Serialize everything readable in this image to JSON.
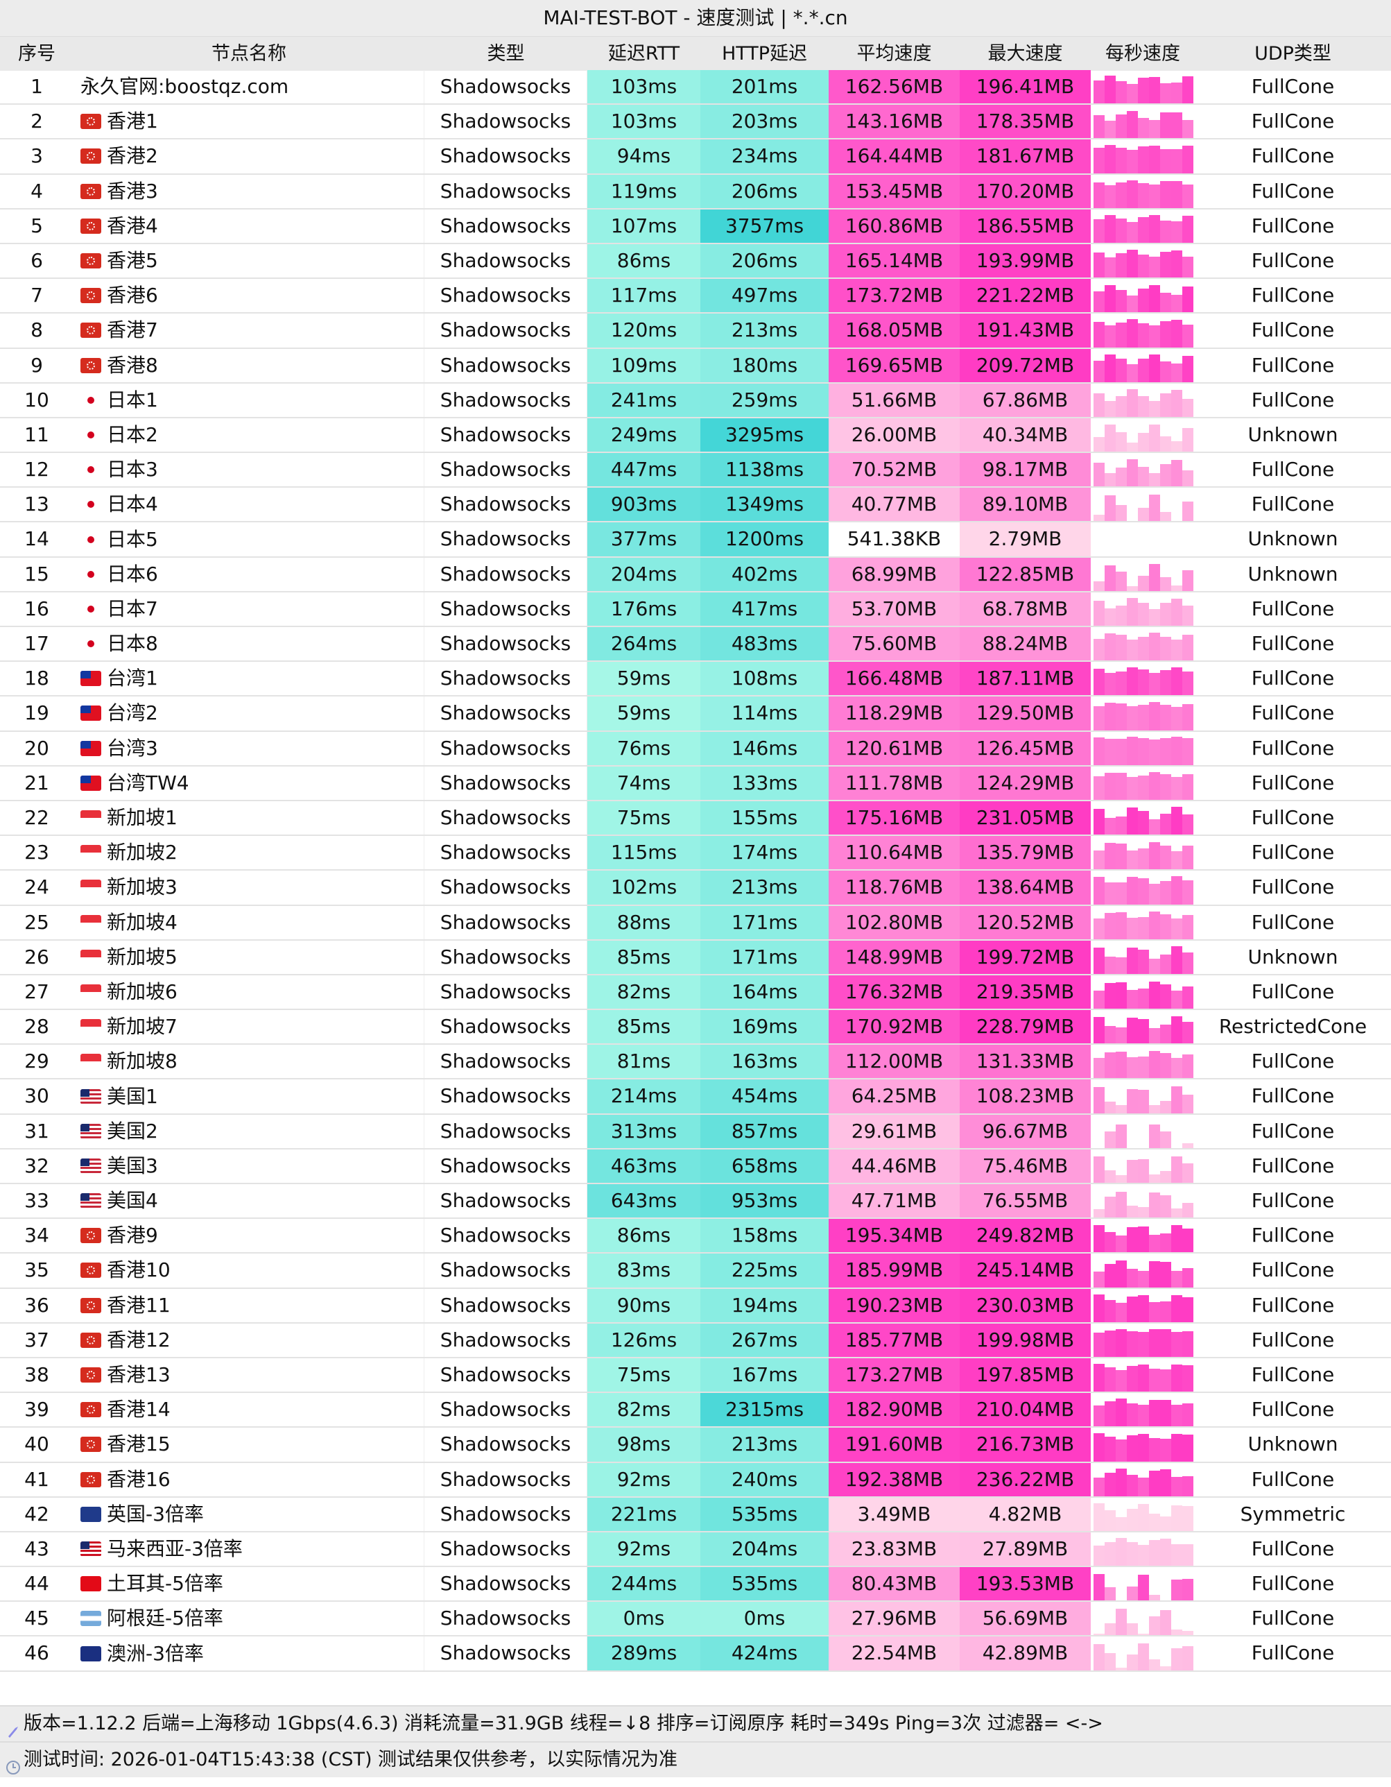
{
  "title": "MAI-TEST-BOT - 速度测试 | *.*.cn",
  "columns": [
    "序号",
    "节点名称",
    "类型",
    "延迟RTT",
    "HTTP延迟",
    "平均速度",
    "最大速度",
    "每秒速度",
    "UDP类型"
  ],
  "colors": {
    "latency_low": "#aaf8e8",
    "latency_high": "#3fd4d6",
    "speed_low": "#ffd8ea",
    "speed_high": "#ff3cc4"
  },
  "rows": [
    [
      "1",
      "",
      "永久官网:boostqz.com",
      "Shadowsocks",
      "103ms",
      "201ms",
      "162.56MB",
      "196.41MB",
      "FullCone"
    ],
    [
      "2",
      "hk-flag",
      "香港1",
      "Shadowsocks",
      "103ms",
      "203ms",
      "143.16MB",
      "178.35MB",
      "FullCone"
    ],
    [
      "3",
      "hk-flag",
      "香港2",
      "Shadowsocks",
      "94ms",
      "234ms",
      "164.44MB",
      "181.67MB",
      "FullCone"
    ],
    [
      "4",
      "hk-flag",
      "香港3",
      "Shadowsocks",
      "119ms",
      "206ms",
      "153.45MB",
      "170.20MB",
      "FullCone"
    ],
    [
      "5",
      "hk-flag",
      "香港4",
      "Shadowsocks",
      "107ms",
      "3757ms",
      "160.86MB",
      "186.55MB",
      "FullCone"
    ],
    [
      "6",
      "hk-flag",
      "香港5",
      "Shadowsocks",
      "86ms",
      "206ms",
      "165.14MB",
      "193.99MB",
      "FullCone"
    ],
    [
      "7",
      "hk-flag",
      "香港6",
      "Shadowsocks",
      "117ms",
      "497ms",
      "173.72MB",
      "221.22MB",
      "FullCone"
    ],
    [
      "8",
      "hk-flag",
      "香港7",
      "Shadowsocks",
      "120ms",
      "213ms",
      "168.05MB",
      "191.43MB",
      "FullCone"
    ],
    [
      "9",
      "hk-flag",
      "香港8",
      "Shadowsocks",
      "109ms",
      "180ms",
      "169.65MB",
      "209.72MB",
      "FullCone"
    ],
    [
      "10",
      "jp-flag",
      "日本1",
      "Shadowsocks",
      "241ms",
      "259ms",
      "51.66MB",
      "67.86MB",
      "FullCone"
    ],
    [
      "11",
      "jp-flag",
      "日本2",
      "Shadowsocks",
      "249ms",
      "3295ms",
      "26.00MB",
      "40.34MB",
      "Unknown"
    ],
    [
      "12",
      "jp-flag",
      "日本3",
      "Shadowsocks",
      "447ms",
      "1138ms",
      "70.52MB",
      "98.17MB",
      "FullCone"
    ],
    [
      "13",
      "jp-flag",
      "日本4",
      "Shadowsocks",
      "903ms",
      "1349ms",
      "40.77MB",
      "89.10MB",
      "FullCone"
    ],
    [
      "14",
      "jp-flag",
      "日本5",
      "Shadowsocks",
      "377ms",
      "1200ms",
      "541.38KB",
      "2.79MB",
      "Unknown"
    ],
    [
      "15",
      "jp-flag",
      "日本6",
      "Shadowsocks",
      "204ms",
      "402ms",
      "68.99MB",
      "122.85MB",
      "Unknown"
    ],
    [
      "16",
      "jp-flag",
      "日本7",
      "Shadowsocks",
      "176ms",
      "417ms",
      "53.70MB",
      "68.78MB",
      "FullCone"
    ],
    [
      "17",
      "jp-flag",
      "日本8",
      "Shadowsocks",
      "264ms",
      "483ms",
      "75.60MB",
      "88.24MB",
      "FullCone"
    ],
    [
      "18",
      "tw-flag",
      "台湾1",
      "Shadowsocks",
      "59ms",
      "108ms",
      "166.48MB",
      "187.11MB",
      "FullCone"
    ],
    [
      "19",
      "tw-flag",
      "台湾2",
      "Shadowsocks",
      "59ms",
      "114ms",
      "118.29MB",
      "129.50MB",
      "FullCone"
    ],
    [
      "20",
      "tw-flag",
      "台湾3",
      "Shadowsocks",
      "76ms",
      "146ms",
      "120.61MB",
      "126.45MB",
      "FullCone"
    ],
    [
      "21",
      "tw-flag",
      "台湾TW4",
      "Shadowsocks",
      "74ms",
      "133ms",
      "111.78MB",
      "124.29MB",
      "FullCone"
    ],
    [
      "22",
      "sg-flag",
      "新加坡1",
      "Shadowsocks",
      "75ms",
      "155ms",
      "175.16MB",
      "231.05MB",
      "FullCone"
    ],
    [
      "23",
      "sg-flag",
      "新加坡2",
      "Shadowsocks",
      "115ms",
      "174ms",
      "110.64MB",
      "135.79MB",
      "FullCone"
    ],
    [
      "24",
      "sg-flag",
      "新加坡3",
      "Shadowsocks",
      "102ms",
      "213ms",
      "118.76MB",
      "138.64MB",
      "FullCone"
    ],
    [
      "25",
      "sg-flag",
      "新加坡4",
      "Shadowsocks",
      "88ms",
      "171ms",
      "102.80MB",
      "120.52MB",
      "FullCone"
    ],
    [
      "26",
      "sg-flag",
      "新加坡5",
      "Shadowsocks",
      "85ms",
      "171ms",
      "148.99MB",
      "199.72MB",
      "Unknown"
    ],
    [
      "27",
      "sg-flag",
      "新加坡6",
      "Shadowsocks",
      "82ms",
      "164ms",
      "176.32MB",
      "219.35MB",
      "FullCone"
    ],
    [
      "28",
      "sg-flag",
      "新加坡7",
      "Shadowsocks",
      "85ms",
      "169ms",
      "170.92MB",
      "228.79MB",
      "RestrictedCone"
    ],
    [
      "29",
      "sg-flag",
      "新加坡8",
      "Shadowsocks",
      "81ms",
      "163ms",
      "112.00MB",
      "131.33MB",
      "FullCone"
    ],
    [
      "30",
      "us-flag",
      "美国1",
      "Shadowsocks",
      "214ms",
      "454ms",
      "64.25MB",
      "108.23MB",
      "FullCone"
    ],
    [
      "31",
      "us-flag",
      "美国2",
      "Shadowsocks",
      "313ms",
      "857ms",
      "29.61MB",
      "96.67MB",
      "FullCone"
    ],
    [
      "32",
      "us-flag",
      "美国3",
      "Shadowsocks",
      "463ms",
      "658ms",
      "44.46MB",
      "75.46MB",
      "FullCone"
    ],
    [
      "33",
      "us-flag",
      "美国4",
      "Shadowsocks",
      "643ms",
      "953ms",
      "47.71MB",
      "76.55MB",
      "FullCone"
    ],
    [
      "34",
      "hk-flag",
      "香港9",
      "Shadowsocks",
      "86ms",
      "158ms",
      "195.34MB",
      "249.82MB",
      "FullCone"
    ],
    [
      "35",
      "hk-flag",
      "香港10",
      "Shadowsocks",
      "83ms",
      "225ms",
      "185.99MB",
      "245.14MB",
      "FullCone"
    ],
    [
      "36",
      "hk-flag",
      "香港11",
      "Shadowsocks",
      "90ms",
      "194ms",
      "190.23MB",
      "230.03MB",
      "FullCone"
    ],
    [
      "37",
      "hk-flag",
      "香港12",
      "Shadowsocks",
      "126ms",
      "267ms",
      "185.77MB",
      "199.98MB",
      "FullCone"
    ],
    [
      "38",
      "hk-flag",
      "香港13",
      "Shadowsocks",
      "75ms",
      "167ms",
      "173.27MB",
      "197.85MB",
      "FullCone"
    ],
    [
      "39",
      "hk-flag",
      "香港14",
      "Shadowsocks",
      "82ms",
      "2315ms",
      "182.90MB",
      "210.04MB",
      "FullCone"
    ],
    [
      "40",
      "hk-flag",
      "香港15",
      "Shadowsocks",
      "98ms",
      "213ms",
      "191.60MB",
      "216.73MB",
      "Unknown"
    ],
    [
      "41",
      "hk-flag",
      "香港16",
      "Shadowsocks",
      "92ms",
      "240ms",
      "192.38MB",
      "236.22MB",
      "FullCone"
    ],
    [
      "42",
      "gb-flag",
      "英国-3倍率",
      "Shadowsocks",
      "221ms",
      "535ms",
      "3.49MB",
      "4.82MB",
      "Symmetric"
    ],
    [
      "43",
      "my-flag",
      "马来西亚-3倍率",
      "Shadowsocks",
      "92ms",
      "204ms",
      "23.83MB",
      "27.89MB",
      "FullCone"
    ],
    [
      "44",
      "tr-flag",
      "土耳其-5倍率",
      "Shadowsocks",
      "244ms",
      "535ms",
      "80.43MB",
      "193.53MB",
      "FullCone"
    ],
    [
      "45",
      "ar-flag",
      "阿根廷-5倍率",
      "Shadowsocks",
      "0ms",
      "0ms",
      "27.96MB",
      "56.69MB",
      "FullCone"
    ],
    [
      "46",
      "au-flag",
      "澳洲-3倍率",
      "Shadowsocks",
      "289ms",
      "424ms",
      "22.54MB",
      "42.89MB",
      "FullCone"
    ]
  ],
  "footer": {
    "info_icon": "rocket-icon",
    "info": "版本=1.12.2  后端=上海移动 1Gbps(4.6.3) 消耗流量=31.9GB  线程=↓8  排序=订阅原序  耗时=349s  Ping=3次  过滤器= <->",
    "time_icon": "clock-icon",
    "time": "测试时间: 2026-01-04T15:43:38 (CST)  测试结果仅供参考，以实际情况为准"
  }
}
